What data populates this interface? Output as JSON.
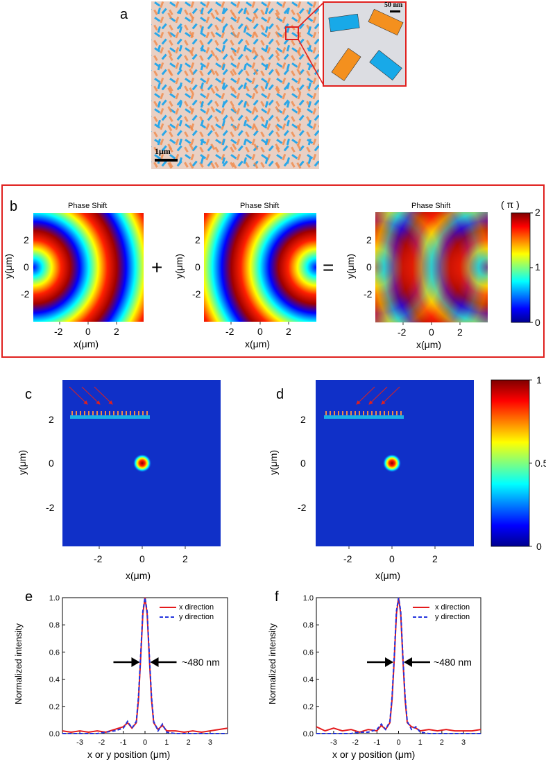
{
  "panels": {
    "a": {
      "label": "a",
      "scale_main": "1μm",
      "scale_inset": "50 nm"
    },
    "b": {
      "label": "b",
      "titles": [
        "Phase Shift",
        "Phase Shift",
        "Phase Shift"
      ],
      "plus": "+",
      "equals": "=",
      "ylabel": "y(μm)",
      "xlabel": "x(μm)",
      "yticks": [
        "2",
        "0",
        "-2"
      ],
      "xticks": [
        "-2",
        "0",
        "2"
      ],
      "colorbar": {
        "unit": "( π )",
        "ticks": [
          "2",
          "1",
          "0"
        ]
      }
    },
    "c": {
      "label": "c"
    },
    "d": {
      "label": "d"
    },
    "cd": {
      "ylabel": "y(μm)",
      "xlabel": "x(μm)",
      "yticks": [
        "2",
        "0",
        "-2"
      ],
      "xticks": [
        "-2",
        "0",
        "2"
      ],
      "colorbar_ticks": [
        "1",
        "0.5",
        "0"
      ]
    },
    "e": {
      "label": "e"
    },
    "f": {
      "label": "f"
    },
    "ef": {
      "ylabel": "Normalized intensity",
      "xlabel": "x or y position (μm)",
      "legend_x": "x direction",
      "legend_y": "y direction",
      "fwhm": "~480 nm",
      "xticks": [
        "-3",
        "-2",
        "-1",
        "0",
        "1",
        "2",
        "3"
      ],
      "yticks": [
        "1.0",
        "0.8",
        "0.6",
        "0.4",
        "0.2",
        "0.0"
      ]
    }
  },
  "chart_data": [
    {
      "type": "line",
      "panel": "e",
      "title": "",
      "xlabel": "x or y position (μm)",
      "ylabel": "Normalized intensity",
      "xlim": [
        -3.8,
        3.8
      ],
      "ylim": [
        0,
        1.0
      ],
      "x": [
        -3.8,
        -3.4,
        -3.0,
        -2.6,
        -2.2,
        -1.8,
        -1.4,
        -1.0,
        -0.8,
        -0.6,
        -0.4,
        -0.3,
        -0.2,
        -0.1,
        0.0,
        0.1,
        0.2,
        0.3,
        0.4,
        0.6,
        0.8,
        1.0,
        1.4,
        1.8,
        2.2,
        2.6,
        3.0,
        3.4,
        3.8
      ],
      "series": [
        {
          "name": "x direction",
          "color": "#e41a1c",
          "values": [
            0.02,
            0.01,
            0.02,
            0.01,
            0.02,
            0.01,
            0.03,
            0.05,
            0.08,
            0.04,
            0.08,
            0.25,
            0.55,
            0.88,
            1.0,
            0.88,
            0.55,
            0.25,
            0.08,
            0.03,
            0.06,
            0.02,
            0.02,
            0.01,
            0.02,
            0.01,
            0.02,
            0.03,
            0.04
          ]
        },
        {
          "name": "y direction",
          "color": "#2233dd",
          "values": [
            0.0,
            0.0,
            0.0,
            0.0,
            0.0,
            0.01,
            0.02,
            0.04,
            0.09,
            0.04,
            0.09,
            0.27,
            0.57,
            0.9,
            1.0,
            0.9,
            0.57,
            0.27,
            0.09,
            0.02,
            0.07,
            0.01,
            0.0,
            0.0,
            0.0,
            0.0,
            0.0,
            0.0,
            0.0
          ]
        }
      ]
    },
    {
      "type": "line",
      "panel": "f",
      "title": "",
      "xlabel": "x or y position (μm)",
      "ylabel": "Normalized intensity",
      "xlim": [
        -3.8,
        3.8
      ],
      "ylim": [
        0,
        1.0
      ],
      "x": [
        -3.8,
        -3.4,
        -3.0,
        -2.6,
        -2.2,
        -1.8,
        -1.4,
        -1.0,
        -0.8,
        -0.6,
        -0.4,
        -0.3,
        -0.2,
        -0.1,
        0.0,
        0.1,
        0.2,
        0.3,
        0.4,
        0.6,
        0.8,
        1.0,
        1.4,
        1.8,
        2.2,
        2.6,
        3.0,
        3.4,
        3.8
      ],
      "series": [
        {
          "name": "x direction",
          "color": "#e41a1c",
          "values": [
            0.05,
            0.02,
            0.04,
            0.02,
            0.03,
            0.01,
            0.03,
            0.02,
            0.06,
            0.03,
            0.08,
            0.25,
            0.55,
            0.88,
            1.0,
            0.88,
            0.55,
            0.25,
            0.08,
            0.05,
            0.04,
            0.02,
            0.03,
            0.02,
            0.03,
            0.02,
            0.02,
            0.02,
            0.03
          ]
        },
        {
          "name": "y direction",
          "color": "#2233dd",
          "values": [
            0.0,
            0.0,
            0.0,
            0.0,
            0.0,
            0.01,
            0.01,
            0.03,
            0.07,
            0.03,
            0.09,
            0.27,
            0.57,
            0.9,
            1.0,
            0.9,
            0.57,
            0.27,
            0.09,
            0.03,
            0.05,
            0.01,
            0.0,
            0.0,
            0.0,
            0.0,
            0.0,
            0.0,
            0.0
          ]
        }
      ]
    }
  ]
}
